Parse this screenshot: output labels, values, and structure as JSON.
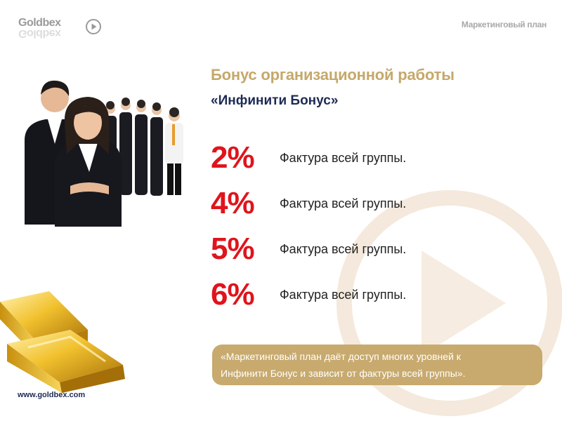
{
  "header": {
    "logo_text": "Goldbex",
    "section_label": "Маркетинговый план"
  },
  "content": {
    "title": "Бонус организационной работы",
    "subtitle": "«Инфинити Бонус»",
    "rows": [
      {
        "percent": "2%",
        "text": "Фактура всей группы."
      },
      {
        "percent": "4%",
        "text": "Фактура всей группы."
      },
      {
        "percent": "5%",
        "text": "Фактура всей группы."
      },
      {
        "percent": "6%",
        "text": "Фактура всей группы."
      }
    ],
    "quote_lines": [
      "«Маркетинговый план даёт доступ многих уровней к",
      "Инфинити Бонус  и зависит от фактуры всей группы»."
    ]
  },
  "footer": {
    "website": "www.goldbex.com"
  },
  "colors": {
    "accent_gold": "#c5a86a",
    "percent_red": "#e0141c",
    "navy": "#1e2a55"
  },
  "icons": {
    "logo_play": "play-circle-icon",
    "watermark": "play-circle-watermark-icon"
  }
}
